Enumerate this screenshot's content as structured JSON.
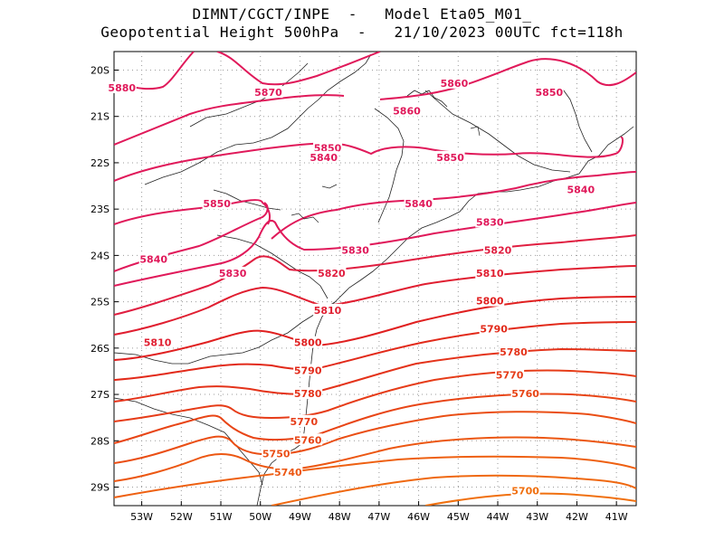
{
  "title_line1": "DIMNT/CGCT/INPE  -   Model Eta05_M01_",
  "title_line2": "Geopotential Height 500hPa  -   21/10/2023 00UTC fct=118h",
  "map": {
    "lon_range": [
      -53.7,
      -40.5
    ],
    "lat_range": [
      -29.4,
      -19.6
    ],
    "lon_ticks": [
      "53W",
      "52W",
      "51W",
      "50W",
      "49W",
      "48W",
      "47W",
      "46W",
      "45W",
      "44W",
      "43W",
      "42W",
      "41W"
    ],
    "lat_ticks": [
      "20S",
      "21S",
      "22S",
      "23S",
      "24S",
      "25S",
      "26S",
      "27S",
      "28S",
      "29S"
    ],
    "grid": true
  },
  "contours": [
    {
      "label": "5880",
      "color": "#e0195a"
    },
    {
      "label": "5870",
      "color": "#e0195a"
    },
    {
      "label": "5860",
      "color": "#e0195a"
    },
    {
      "label": "5850",
      "color": "#e0195a"
    },
    {
      "label": "5840",
      "color": "#e0195a"
    },
    {
      "label": "5830",
      "color": "#e0195a"
    },
    {
      "label": "5820",
      "color": "#e01e40"
    },
    {
      "label": "5810",
      "color": "#e01e30"
    },
    {
      "label": "5800",
      "color": "#e02020"
    },
    {
      "label": "5790",
      "color": "#e22a1a"
    },
    {
      "label": "5780",
      "color": "#e4331a"
    },
    {
      "label": "5770",
      "color": "#e63c18"
    },
    {
      "label": "5760",
      "color": "#e84516"
    },
    {
      "label": "5750",
      "color": "#ea4e14"
    },
    {
      "label": "5740",
      "color": "#ec5712"
    },
    {
      "label": "5700",
      "color": "#f07010"
    }
  ]
}
